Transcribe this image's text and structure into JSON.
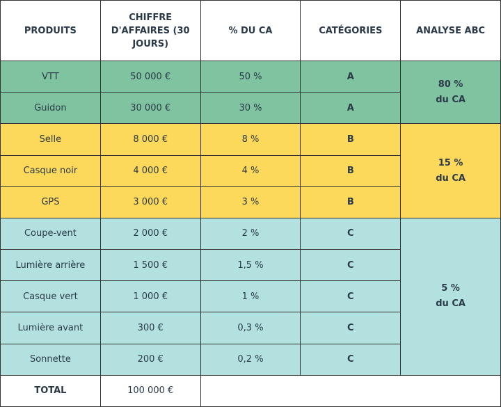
{
  "table": {
    "header": [
      "PRODUITS",
      "CHIFFRE D'AFFAIRES (30 JOURS)",
      "% DU CA",
      "CATÉGORIES",
      "ANALYSE ABC"
    ],
    "rows": [
      [
        "VTT",
        "50 000 €",
        "50 %",
        "A"
      ],
      [
        "Guidon",
        "30 000 €",
        "30 %",
        "A"
      ],
      [
        "Selle",
        "8 000 €",
        "8 %",
        "B"
      ],
      [
        "Casque noir",
        "4 000 €",
        "4 %",
        "B"
      ],
      [
        "GPS",
        "3 000 €",
        "3 %",
        "B"
      ],
      [
        "Coupe-vent",
        "2 000 €",
        "2 %",
        "C"
      ],
      [
        "Lumière arrière",
        "1 500 €",
        "1,5 %",
        "C"
      ],
      [
        "Casque vert",
        "1 000 €",
        "1 %",
        "C"
      ],
      [
        "Lumière avant",
        "300 €",
        "0,3 %",
        "C"
      ],
      [
        "Sonnette",
        "200 €",
        "0,2 %",
        "C"
      ]
    ],
    "groups": [
      [
        "80 %",
        "du CA"
      ],
      [
        "15 %",
        "du CA"
      ],
      [
        "5 %",
        "du CA"
      ]
    ],
    "total": [
      "TOTAL",
      "100 000 €"
    ]
  }
}
